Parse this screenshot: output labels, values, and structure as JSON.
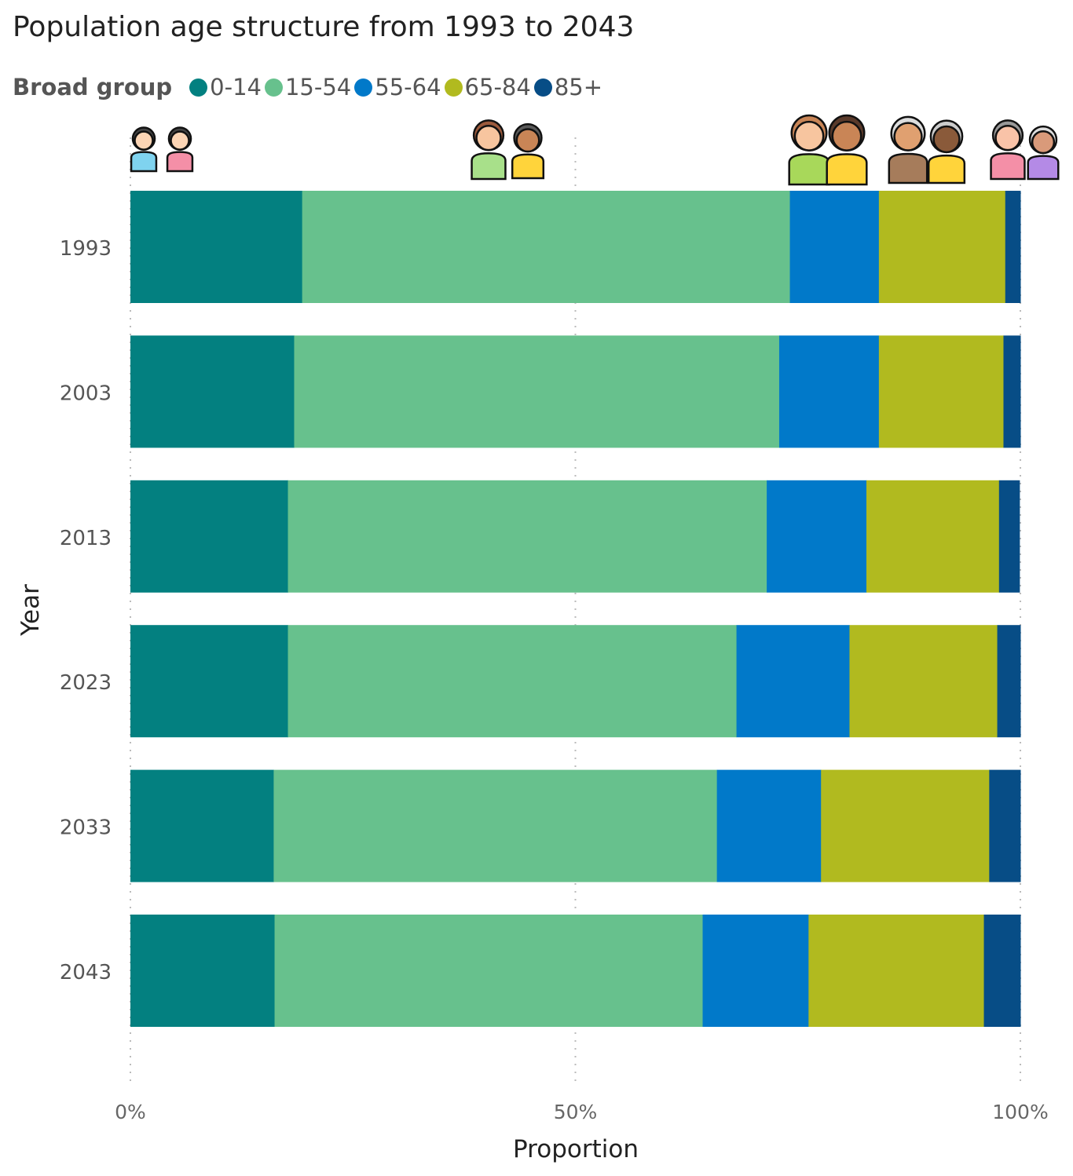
{
  "title": "Population age structure from 1993 to 2043",
  "legend": {
    "title": "Broad group",
    "items": [
      {
        "label": "0-14",
        "color": "#038080"
      },
      {
        "label": "15-54",
        "color": "#67C18D"
      },
      {
        "label": "55-64",
        "color": "#0179C9"
      },
      {
        "label": "65-84",
        "color": "#B1BA1F"
      },
      {
        "label": "85+",
        "color": "#074D86"
      }
    ]
  },
  "icons": [
    "children-icon",
    "young-adults-icon",
    "adults-icon",
    "older-adults-icon",
    "elderly-icon"
  ],
  "chart_data": {
    "type": "bar",
    "orientation": "horizontal",
    "stacked": "100%",
    "title": "Population age structure from 1993 to 2043",
    "xlabel": "Proportion",
    "ylabel": "Year",
    "xlim": [
      0,
      100
    ],
    "xticks": [
      "0%",
      "50%",
      "100%"
    ],
    "grid": true,
    "legend_position": "top-left",
    "categories": [
      "1993",
      "2003",
      "2013",
      "2023",
      "2033",
      "2043"
    ],
    "series": [
      {
        "name": "0-14",
        "values": [
          19.3,
          18.4,
          17.7,
          17.7,
          16.1,
          16.2
        ]
      },
      {
        "name": "15-54",
        "values": [
          54.8,
          54.5,
          53.8,
          50.4,
          49.8,
          48.1
        ]
      },
      {
        "name": "55-64",
        "values": [
          10.0,
          11.2,
          11.2,
          12.7,
          11.7,
          11.9
        ]
      },
      {
        "name": "65-84",
        "values": [
          14.2,
          14.0,
          14.9,
          16.6,
          18.9,
          19.7
        ]
      },
      {
        "name": "85+",
        "values": [
          1.7,
          1.9,
          2.3,
          2.6,
          3.5,
          4.1
        ]
      }
    ]
  }
}
